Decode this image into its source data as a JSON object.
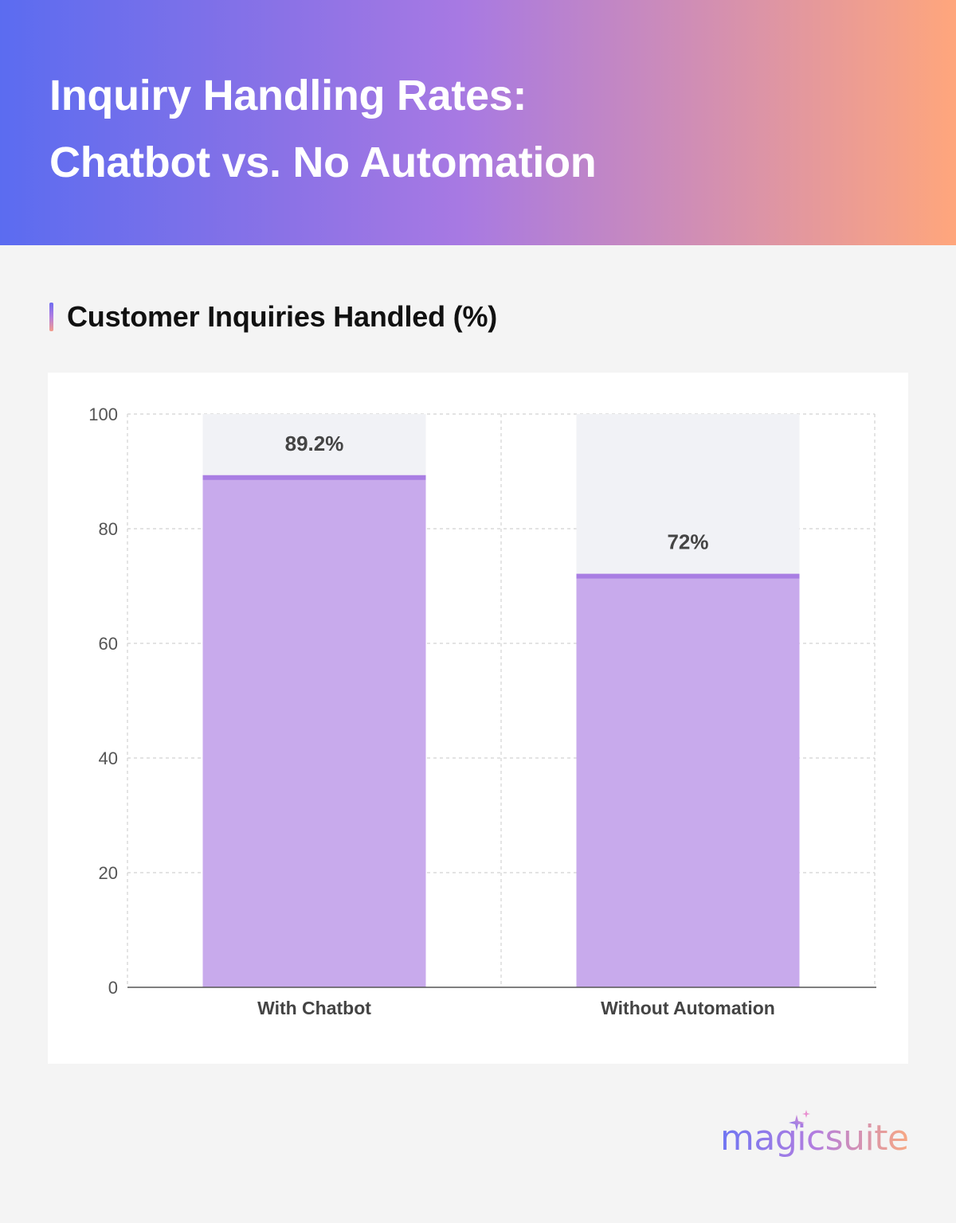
{
  "header": {
    "title_line1": "Inquiry Handling Rates:",
    "title_line2": "Chatbot vs. No Automation"
  },
  "section": {
    "title": "Customer Inquiries Handled (%)"
  },
  "chart_data": {
    "type": "bar",
    "categories": [
      "With Chatbot",
      "Without Automation"
    ],
    "values": [
      89.2,
      72
    ],
    "data_labels": [
      "89.2%",
      "72%"
    ],
    "ylim": [
      0,
      100
    ],
    "yticks": [
      0,
      20,
      40,
      60,
      80,
      100
    ],
    "ytick_labels": [
      "0",
      "20",
      "40",
      "60",
      "80",
      "100"
    ],
    "grid": true,
    "colors": {
      "bar_fill": "#c8aaec",
      "bar_top": "#a97ee3",
      "bar_track": "#f1f2f6",
      "grid": "#d2d2d2",
      "axis": "#555555",
      "tick_text": "#555555",
      "label_text": "#444444"
    }
  },
  "brand": {
    "logo_text": "magicsuite",
    "icon": "sparkle-icon"
  }
}
